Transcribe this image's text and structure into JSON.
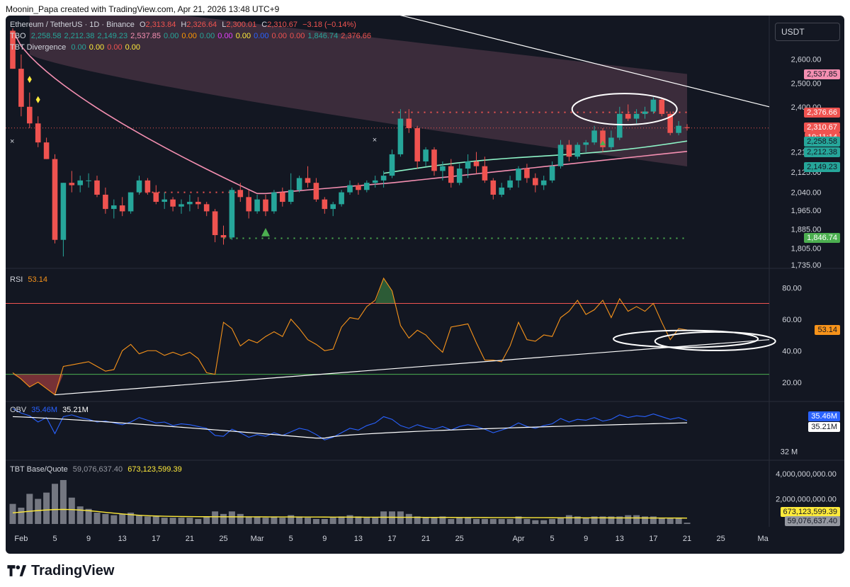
{
  "header": {
    "text": "Moonin_Papa created with TradingView.com, Apr 21, 2026 13:48 UTC+9"
  },
  "currency": "USDT",
  "footer": {
    "brand": "TradingView"
  },
  "legend": {
    "symbol": "Ethereum / TetherUS · 1D · Binance",
    "ohlc": {
      "o_label": "O",
      "o": "2,313.84",
      "h_label": "H",
      "h": "2,326.64",
      "l_label": "L",
      "l": "2,300.01",
      "c_label": "C",
      "c": "2,310.67",
      "change": "−3.18 (−0.14%)"
    },
    "tbo": {
      "label": "TBO",
      "values": [
        "2,258.58",
        "2,212.38",
        "2,149.23",
        "2,537.85",
        "0.00",
        "0.00",
        "0.00",
        "0.00",
        "0.00",
        "0.00",
        "0.00",
        "0.00",
        "1,846.74",
        "2,376.66"
      ]
    },
    "tbt_div": {
      "label": "TBT Divergence",
      "values": [
        "0.00",
        "0.00",
        "0.00",
        "0.00"
      ]
    }
  },
  "colors": {
    "up": "#26a69a",
    "down": "#ef5350",
    "bg": "#131722",
    "text": "#d1d4dc",
    "pink_line": "#f48fb1",
    "mint_line": "#8ef5c8",
    "rsi": "#f7931a",
    "obv": "#2962ff",
    "vol_ma": "#ffeb3b"
  },
  "chart_data": [
    {
      "type": "candlestick",
      "title": "Ethereum / TetherUS · 1D · Binance",
      "x": [
        "Jan 31",
        "Feb 1",
        "Feb 2",
        "Feb 3",
        "Feb 4",
        "Feb 5",
        "Feb 6",
        "Feb 7",
        "Feb 8",
        "Feb 9",
        "Feb 10",
        "Feb 11",
        "Feb 12",
        "Feb 13",
        "Feb 14",
        "Feb 15",
        "Feb 16",
        "Feb 17",
        "Feb 18",
        "Feb 19",
        "Feb 20",
        "Feb 21",
        "Feb 22",
        "Feb 23",
        "Feb 24",
        "Feb 25",
        "Feb 26",
        "Feb 27",
        "Feb 28",
        "Mar 1",
        "Mar 2",
        "Mar 3",
        "Mar 4",
        "Mar 5",
        "Mar 6",
        "Mar 7",
        "Mar 8",
        "Mar 9",
        "Mar 10",
        "Mar 11",
        "Mar 12",
        "Mar 13",
        "Mar 14",
        "Mar 15",
        "Mar 16",
        "Mar 17",
        "Mar 18",
        "Mar 19",
        "Mar 20",
        "Mar 21",
        "Mar 22",
        "Mar 23",
        "Mar 24",
        "Mar 25",
        "Mar 26",
        "Mar 27",
        "Mar 28",
        "Mar 29",
        "Mar 30",
        "Mar 31",
        "Apr 1",
        "Apr 2",
        "Apr 3",
        "Apr 4",
        "Apr 5",
        "Apr 6",
        "Apr 7",
        "Apr 8",
        "Apr 9",
        "Apr 10",
        "Apr 11",
        "Apr 12",
        "Apr 13",
        "Apr 14",
        "Apr 15",
        "Apr 16",
        "Apr 17",
        "Apr 18",
        "Apr 19",
        "Apr 20",
        "Apr 21"
      ],
      "ohlc": [
        [
          2720,
          2730,
          2560,
          2560
        ],
        [
          2560,
          2620,
          2360,
          2400
        ],
        [
          2400,
          2460,
          2310,
          2330
        ],
        [
          2330,
          2360,
          2230,
          2250
        ],
        [
          2250,
          2270,
          2180,
          2180
        ],
        [
          2180,
          2200,
          1825,
          1840
        ],
        [
          1840,
          2080,
          1770,
          2080
        ],
        [
          2080,
          2130,
          2040,
          2070
        ],
        [
          2070,
          2110,
          2040,
          2090
        ],
        [
          2090,
          2120,
          2060,
          2090
        ],
        [
          2090,
          2110,
          2020,
          2030
        ],
        [
          2030,
          2060,
          1950,
          1970
        ],
        [
          1970,
          2010,
          1930,
          1985
        ],
        [
          1985,
          2020,
          1940,
          1960
        ],
        [
          1960,
          2040,
          1950,
          2040
        ],
        [
          2040,
          2110,
          2030,
          2090
        ],
        [
          2090,
          2100,
          2030,
          2040
        ],
        [
          2040,
          2070,
          1990,
          2000
        ],
        [
          2000,
          2040,
          1970,
          2010
        ],
        [
          2010,
          2020,
          1960,
          1980
        ],
        [
          1980,
          2010,
          1950,
          1990
        ],
        [
          1990,
          2030,
          1960,
          2000
        ],
        [
          2000,
          2020,
          1970,
          1990
        ],
        [
          1990,
          2000,
          1940,
          1960
        ],
        [
          1960,
          1970,
          1830,
          1860
        ],
        [
          1860,
          1900,
          1820,
          1850
        ],
        [
          1850,
          2060,
          1840,
          2050
        ],
        [
          2050,
          2080,
          2000,
          2020
        ],
        [
          2020,
          2050,
          1930,
          1960
        ],
        [
          1960,
          2030,
          1950,
          2010
        ],
        [
          2010,
          2030,
          1940,
          1960
        ],
        [
          1960,
          2050,
          1950,
          2040
        ],
        [
          2040,
          2060,
          1980,
          2000
        ],
        [
          2000,
          2120,
          1990,
          2050
        ],
        [
          2050,
          2110,
          2040,
          2100
        ],
        [
          2100,
          2150,
          2060,
          2080
        ],
        [
          2080,
          2100,
          2000,
          2010
        ],
        [
          2010,
          2020,
          1950,
          1970
        ],
        [
          1970,
          2000,
          1940,
          1990
        ],
        [
          1990,
          2050,
          1980,
          2040
        ],
        [
          2040,
          2090,
          2030,
          2070
        ],
        [
          2070,
          2080,
          2030,
          2050
        ],
        [
          2050,
          2090,
          2040,
          2080
        ],
        [
          2080,
          2110,
          2060,
          2090
        ],
        [
          2090,
          2130,
          2060,
          2110
        ],
        [
          2110,
          2220,
          2100,
          2200
        ],
        [
          2200,
          2390,
          2190,
          2350
        ],
        [
          2350,
          2390,
          2290,
          2310
        ],
        [
          2310,
          2320,
          2140,
          2170
        ],
        [
          2170,
          2230,
          2150,
          2220
        ],
        [
          2220,
          2230,
          2110,
          2130
        ],
        [
          2130,
          2170,
          2090,
          2150
        ],
        [
          2150,
          2180,
          2060,
          2080
        ],
        [
          2080,
          2160,
          2070,
          2140
        ],
        [
          2140,
          2200,
          2100,
          2170
        ],
        [
          2170,
          2210,
          2120,
          2150
        ],
        [
          2150,
          2190,
          2080,
          2090
        ],
        [
          2090,
          2100,
          2010,
          2030
        ],
        [
          2030,
          2080,
          2020,
          2060
        ],
        [
          2060,
          2110,
          2050,
          2090
        ],
        [
          2090,
          2150,
          2060,
          2140
        ],
        [
          2140,
          2160,
          2080,
          2100
        ],
        [
          2100,
          2120,
          2040,
          2070
        ],
        [
          2070,
          2110,
          2050,
          2090
        ],
        [
          2090,
          2170,
          2080,
          2150
        ],
        [
          2150,
          2260,
          2140,
          2240
        ],
        [
          2240,
          2260,
          2170,
          2190
        ],
        [
          2190,
          2250,
          2180,
          2240
        ],
        [
          2240,
          2260,
          2210,
          2250
        ],
        [
          2250,
          2320,
          2240,
          2300
        ],
        [
          2300,
          2310,
          2210,
          2230
        ],
        [
          2230,
          2300,
          2220,
          2270
        ],
        [
          2270,
          2400,
          2260,
          2370
        ],
        [
          2370,
          2410,
          2340,
          2350
        ],
        [
          2350,
          2390,
          2330,
          2370
        ],
        [
          2370,
          2400,
          2350,
          2380
        ],
        [
          2380,
          2440,
          2370,
          2430
        ],
        [
          2430,
          2440,
          2360,
          2370
        ],
        [
          2370,
          2380,
          2280,
          2290
        ],
        [
          2290,
          2340,
          2280,
          2320
        ],
        [
          2313.84,
          2326.64,
          2300.01,
          2310.67
        ]
      ],
      "overlays": {
        "pink_ma": "from ~2,720 (Feb) falling to ~2,035 (Mar 1), then rising to ~2,212 (Apr 21)",
        "mint_ma_from": "Mar 15",
        "band_top_from": 2860,
        "band_top_to": 2537.85,
        "band_bottom_from": 2620,
        "band_bottom_to": 2149.23,
        "resistance_line": "descending white trendline from ~2,860 (Mar 8) to ~2,400 (Apr 27)"
      },
      "levels": {
        "red_dotted": [
          2040,
          2376.66
        ],
        "green_dotted": 1846.74
      },
      "price_tags": [
        "2,537.85",
        "2,376.66",
        "2,310.67",
        "19:11:14",
        "2,258.58",
        "2,212.38",
        "2,149.23",
        "1,846.74"
      ],
      "ylim": [
        1720,
        2760
      ],
      "yticks": [
        "2,600.00",
        "2,500.00",
        "2,400.00",
        "2,310.67",
        "2,210.00",
        "2,125.00",
        "2,040.00",
        "1,965.00",
        "1,885.00",
        "1,805.00",
        "1,735.00"
      ],
      "xticks": [
        "Feb",
        "5",
        "9",
        "13",
        "17",
        "21",
        "25",
        "Mar",
        "5",
        "9",
        "13",
        "17",
        "21",
        "25",
        "Apr",
        "5",
        "9",
        "13",
        "17",
        "21",
        "25",
        "Ma"
      ]
    },
    {
      "type": "line",
      "title": "RSI",
      "value": "53.14",
      "ylim": [
        10,
        90
      ],
      "yticks": [
        "80.00",
        "60.00",
        "40.00",
        "20.00"
      ],
      "upper_band": 70,
      "lower_band": 25,
      "values": [
        26,
        22,
        17,
        20,
        16,
        12,
        30,
        31,
        32,
        33,
        30,
        27,
        28,
        40,
        44,
        38,
        40,
        40,
        37,
        39,
        37,
        39,
        35,
        26,
        25,
        58,
        54,
        43,
        47,
        45,
        49,
        52,
        49,
        60,
        54,
        47,
        44,
        40,
        41,
        55,
        61,
        60,
        68,
        72,
        86,
        78,
        56,
        48,
        53,
        50,
        44,
        39,
        55,
        56,
        57,
        45,
        34,
        34,
        33,
        43,
        58,
        47,
        46,
        50,
        49,
        61,
        65,
        72,
        63,
        66,
        72,
        61,
        73,
        65,
        68,
        65,
        70,
        58,
        47,
        54,
        53.14
      ],
      "trendline": "rising white line from ~12 (Feb 5) to ~47 (Apr 27)"
    },
    {
      "type": "line",
      "title": "OBV",
      "series": [
        {
          "name": "35.46M"
        },
        {
          "name": "35.21M"
        }
      ],
      "ylim": [
        31.5,
        37.2
      ],
      "yticks": [
        "32 M"
      ],
      "obv": [
        36.8,
        36.3,
        36.0,
        35.3,
        35.8,
        34.0,
        35.9,
        36.1,
        35.8,
        35.6,
        35.3,
        35.4,
        35.2,
        35.0,
        35.3,
        35.8,
        35.5,
        35.2,
        35.3,
        34.9,
        35.1,
        35.0,
        34.8,
        34.6,
        33.8,
        33.7,
        34.5,
        34.1,
        33.6,
        33.9,
        33.7,
        34.1,
        33.8,
        34.2,
        34.6,
        34.4,
        33.9,
        33.3,
        33.6,
        34.1,
        34.6,
        34.4,
        34.9,
        35.2,
        35.9,
        35.6,
        34.9,
        34.6,
        35.0,
        34.7,
        34.5,
        34.8,
        34.4,
        34.8,
        35.0,
        34.8,
        34.5,
        34.1,
        34.4,
        34.7,
        35.2,
        34.8,
        34.6,
        34.9,
        35.1,
        35.7,
        35.3,
        35.6,
        35.5,
        35.8,
        35.4,
        35.6,
        36.1,
        35.8,
        36.0,
        35.9,
        36.2,
        35.9,
        35.6,
        35.8,
        35.46
      ],
      "obv_ma": "smooth white line from ~35.9 (Feb) to ~33.5 (Mar 8) then rising to 35.21 (Apr 21)"
    },
    {
      "type": "bar",
      "title": "TBT Base/Quote",
      "series": [
        {
          "name": "59,076,637.40"
        },
        {
          "name": "673,123,599.39"
        }
      ],
      "ylim": [
        0,
        4400000000
      ],
      "yticks": [
        "4,000,000,000.00",
        "2,000,000,000.00"
      ],
      "values_rel": [
        1.6,
        1.3,
        2.4,
        2.0,
        2.5,
        3.2,
        3.5,
        2.1,
        1.4,
        1.2,
        0.9,
        0.8,
        0.7,
        0.8,
        0.9,
        0.7,
        0.6,
        0.6,
        0.5,
        0.5,
        0.5,
        0.5,
        0.4,
        0.6,
        1.0,
        0.8,
        1.0,
        0.8,
        0.6,
        0.6,
        0.5,
        0.6,
        0.5,
        0.7,
        0.6,
        0.5,
        0.4,
        0.4,
        0.5,
        0.6,
        0.7,
        0.6,
        0.5,
        0.5,
        1.0,
        1.0,
        1.0,
        0.8,
        0.6,
        0.5,
        0.5,
        0.6,
        0.4,
        0.5,
        0.5,
        0.4,
        0.4,
        0.4,
        0.4,
        0.4,
        0.6,
        0.4,
        0.3,
        0.3,
        0.4,
        0.5,
        0.7,
        0.6,
        0.5,
        0.6,
        0.6,
        0.6,
        0.6,
        0.7,
        0.7,
        0.6,
        0.6,
        0.5,
        0.5,
        0.5,
        0.1
      ],
      "values_unit": "billions"
    }
  ],
  "right_tags": {
    "rsi": "53.14",
    "obv_a": "35.46M",
    "obv_b": "35.21M",
    "vol_a": "673,123,599.39",
    "vol_b": "59,076,637.40"
  },
  "pane_legends": {
    "rsi_label": "RSI",
    "rsi_value": "53.14",
    "obv_label": "OBV",
    "obv_value1": "35.46M",
    "obv_value2": "35.21M",
    "vol_label": "TBT Base/Quote",
    "vol_value1": "59,076,637.40",
    "vol_value2": "673,123,599.39"
  }
}
